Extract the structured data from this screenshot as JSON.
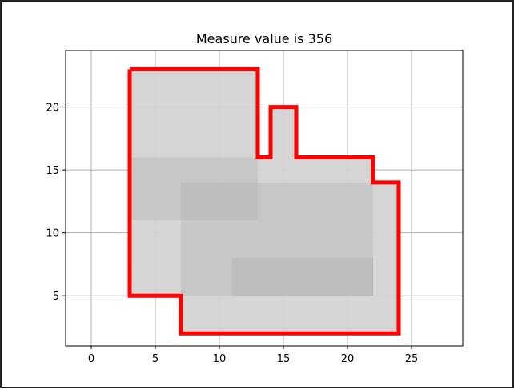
{
  "chart_data": {
    "type": "area",
    "title": "Measure value is 356",
    "xlabel": "",
    "ylabel": "",
    "xlim": [
      -2,
      29
    ],
    "ylim": [
      1,
      24.5
    ],
    "xticks": [
      0,
      5,
      10,
      15,
      20,
      25
    ],
    "yticks": [
      5,
      10,
      15,
      20
    ],
    "grid": true,
    "rectangles": [
      {
        "x": [
          3,
          13
        ],
        "y": [
          11,
          16
        ]
      },
      {
        "x": [
          7,
          22
        ],
        "y": [
          5,
          14
        ]
      },
      {
        "x": [
          11,
          22
        ],
        "y": [
          5,
          8
        ]
      }
    ],
    "outline": [
      [
        3,
        23
      ],
      [
        13,
        23
      ],
      [
        13,
        16
      ],
      [
        14,
        16
      ],
      [
        14,
        20
      ],
      [
        16,
        20
      ],
      [
        16,
        16
      ],
      [
        22,
        16
      ],
      [
        22,
        14
      ],
      [
        24,
        14
      ],
      [
        24,
        2
      ],
      [
        7,
        2
      ],
      [
        7,
        5
      ],
      [
        3,
        5
      ],
      [
        3,
        23
      ]
    ],
    "colors": {
      "fill": "#d3d3d3",
      "rect_fill": "#b0b0b0",
      "outline": "#ff0000",
      "grid": "#b0b0b0"
    }
  }
}
